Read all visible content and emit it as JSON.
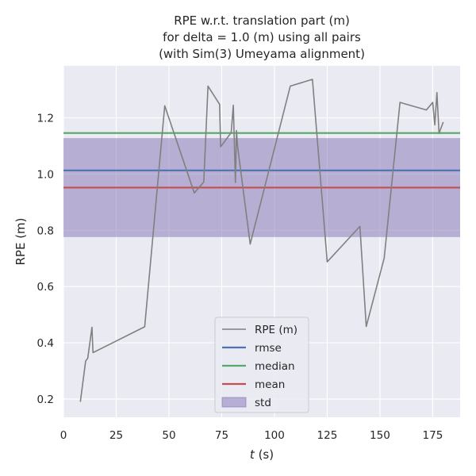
{
  "chart_data": {
    "type": "line",
    "title_lines": [
      "RPE w.r.t. translation part (m)",
      "for delta = 1.0 (m) using all pairs",
      "(with Sim(3) Umeyama alignment)"
    ],
    "xlabel_italic": "t",
    "xlabel_rest": " (s)",
    "ylabel": "RPE (m)",
    "xlim": [
      0,
      188
    ],
    "ylim": [
      0.135,
      1.385
    ],
    "x_ticks": [
      0,
      25,
      50,
      75,
      100,
      125,
      150,
      175
    ],
    "y_ticks": [
      0.2,
      0.4,
      0.6,
      0.8,
      1.0,
      1.2
    ],
    "grid": true,
    "legend_position": "lower-center",
    "series": [
      {
        "name": "RPE (m)",
        "color": "#808080",
        "x": [
          8,
          10.5,
          11.5,
          13.5,
          14,
          38.5,
          48,
          62,
          66.5,
          68.5,
          74,
          74.5,
          79.5,
          80.5,
          81.5,
          82,
          82.5,
          88.5,
          107.5,
          118,
          125,
          140.5,
          143.5,
          152,
          159.5,
          172,
          175,
          176,
          177,
          178,
          180
        ],
        "y": [
          0.19,
          0.335,
          0.345,
          0.455,
          0.365,
          0.457,
          1.243,
          0.933,
          0.972,
          1.313,
          1.248,
          1.097,
          1.148,
          1.245,
          0.97,
          1.155,
          1.1,
          0.751,
          1.313,
          1.337,
          0.688,
          0.814,
          0.458,
          0.701,
          1.255,
          1.228,
          1.255,
          1.175,
          1.29,
          1.145,
          1.185
        ]
      }
    ],
    "stats": {
      "rmse": 1.013,
      "median": 1.146,
      "mean": 0.952,
      "std_band": [
        0.776,
        1.128
      ]
    },
    "legend": [
      {
        "label": "RPE (m)",
        "kind": "line",
        "color": "#808080"
      },
      {
        "label": "rmse",
        "kind": "line",
        "color": "#4c72b0"
      },
      {
        "label": "median",
        "kind": "line",
        "color": "#55a868"
      },
      {
        "label": "mean",
        "kind": "line",
        "color": "#c44e52"
      },
      {
        "label": "std",
        "kind": "patch",
        "color": "#8172b3"
      }
    ],
    "colors": {
      "axes_bg": "#eaeaf2",
      "grid": "#ffffff",
      "rmse": "#4c72b0",
      "median": "#55a868",
      "mean": "#c44e52",
      "std": "#8172b3",
      "rpe": "#808080"
    }
  }
}
